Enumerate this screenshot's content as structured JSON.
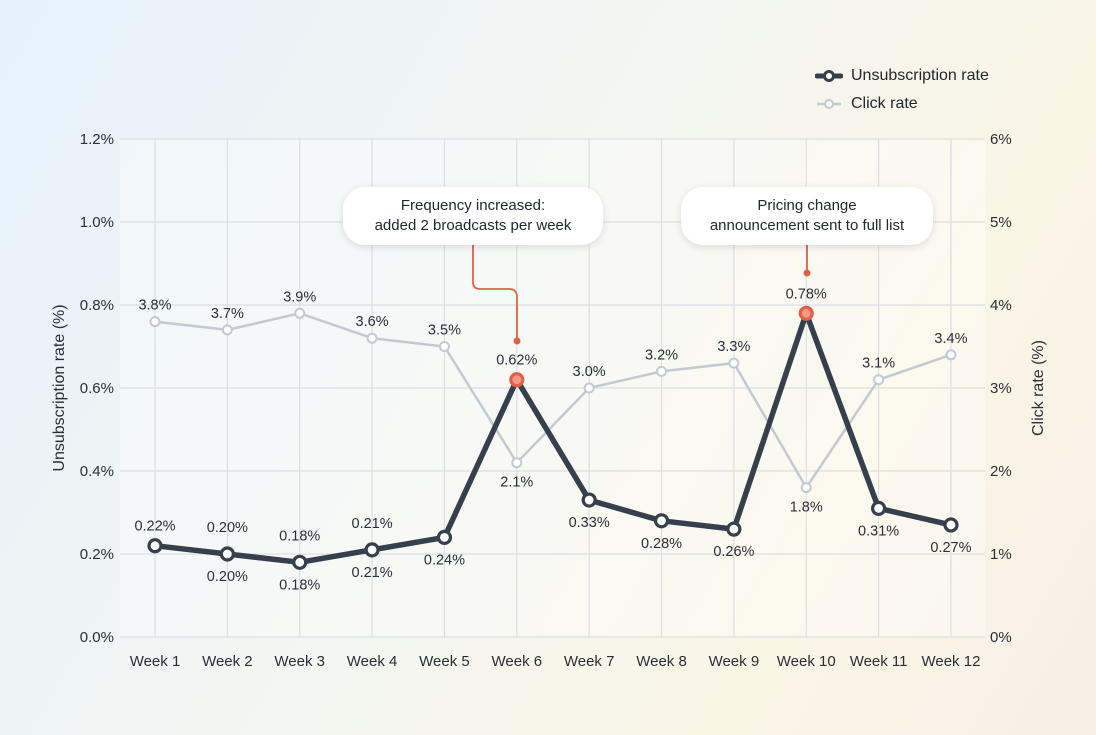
{
  "chart_data": {
    "type": "line",
    "categories": [
      "Week 1",
      "Week 2",
      "Week 3",
      "Week 4",
      "Week 5",
      "Week 6",
      "Week 7",
      "Week 8",
      "Week 9",
      "Week 10",
      "Week 11",
      "Week 12"
    ],
    "series": [
      {
        "name": "Unsubscription rate",
        "axis": "left",
        "color": "#36404d",
        "values": [
          0.22,
          0.2,
          0.18,
          0.21,
          0.24,
          0.62,
          0.33,
          0.28,
          0.26,
          0.78,
          0.31,
          0.27
        ],
        "labels": [
          "0.22%",
          "0.20%",
          "0.18%",
          "0.21%",
          "0.24%",
          "0.62%",
          "0.33%",
          "0.28%",
          "0.26%",
          "0.78%",
          "0.31%",
          "0.27%"
        ]
      },
      {
        "name": "Click rate",
        "axis": "right",
        "color": "#c3c9d1",
        "values": [
          3.8,
          3.7,
          3.9,
          3.6,
          3.5,
          2.1,
          3.0,
          3.2,
          3.3,
          1.8,
          3.1,
          3.4
        ],
        "labels": [
          "3.8%",
          "3.7%",
          "3.9%",
          "3.6%",
          "3.5%",
          "2.1%",
          "3.0%",
          "3.2%",
          "3.3%",
          "1.8%",
          "3.1%",
          "3.4%"
        ]
      }
    ],
    "ylabel": "Unsubscription rate (%)",
    "y2label": "Click rate (%)",
    "ylim": [
      0,
      1.2
    ],
    "y2lim": [
      0,
      6
    ],
    "yticks": [
      "0.0%",
      "0.2%",
      "0.4%",
      "0.6%",
      "0.8%",
      "1.0%",
      "1.2%"
    ],
    "y2ticks": [
      "0%",
      "1%",
      "2%",
      "3%",
      "4%",
      "5%",
      "6%"
    ],
    "grid": true,
    "legend_position": "top-right",
    "highlight_color": "#e0614a",
    "annotations": [
      {
        "week": "Week 6",
        "text_line1": "Frequency increased:",
        "text_line2": "added 2 broadcasts per week"
      },
      {
        "week": "Week 10",
        "text_line1": "Pricing change",
        "text_line2": "announcement sent to full list"
      }
    ]
  }
}
